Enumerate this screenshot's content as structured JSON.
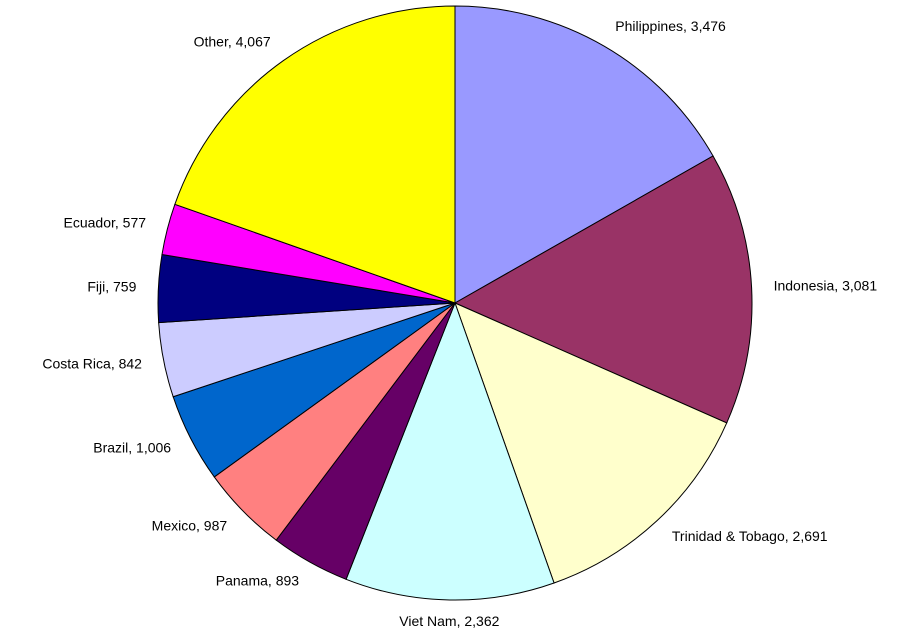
{
  "chart_data": {
    "type": "pie",
    "categories": [
      "Philippines",
      "Indonesia",
      "Trinidad & Tobago",
      "Viet Nam",
      "Panama",
      "Mexico",
      "Brazil",
      "Costa Rica",
      "Fiji",
      "Ecuador",
      "Other"
    ],
    "values": [
      3476,
      3081,
      2691,
      2362,
      893,
      987,
      1006,
      842,
      759,
      577,
      4067
    ],
    "value_labels": [
      "3,476",
      "3,081",
      "2,691",
      "2,362",
      "893",
      "987",
      "1,006",
      "842",
      "759",
      "577",
      "4,067"
    ],
    "colors": [
      "#9999ff",
      "#993366",
      "#ffffcc",
      "#ccffff",
      "#660066",
      "#ff8080",
      "#0066cc",
      "#ccccff",
      "#000080",
      "#ff00ff",
      "#ffff00"
    ]
  }
}
